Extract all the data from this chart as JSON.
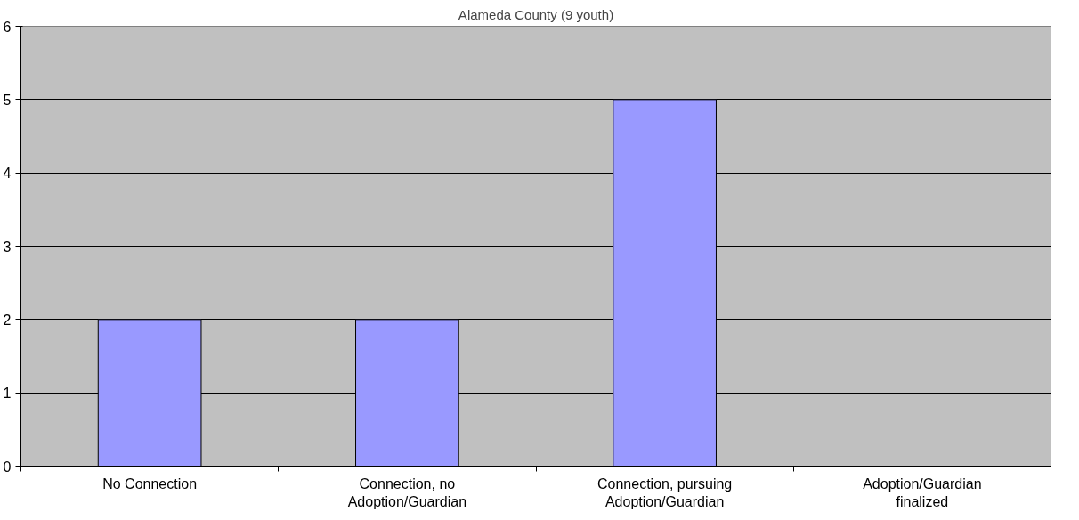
{
  "chart_data": {
    "type": "bar",
    "title": "Alameda County (9 youth)",
    "categories": [
      "No Connection",
      "Connection, no Adoption/Guardian",
      "Connection, pursuing Adoption/Guardian",
      "Adoption/Guardian finalized"
    ],
    "values": [
      2,
      2,
      5,
      0
    ],
    "color": "#9999ff",
    "ylim": [
      0,
      6
    ],
    "yticks": [
      0,
      1,
      2,
      3,
      4,
      5,
      6
    ],
    "grid": "y"
  }
}
